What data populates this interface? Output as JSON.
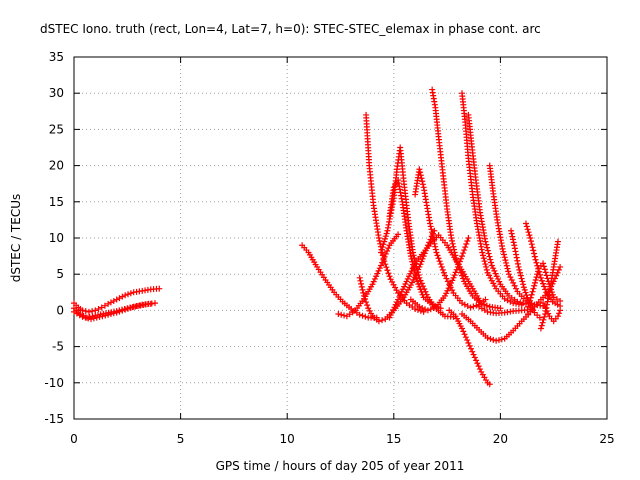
{
  "chart_data": {
    "type": "scatter",
    "title": "dSTEC Iono. truth (rect, Lon=4, Lat=7, h=0): STEC-STEC_elemax in phase cont. arc",
    "xlabel": "GPS time / hours of day 205 of year 2011",
    "ylabel": "dSTEC  / TECUs",
    "xlim": [
      0,
      25
    ],
    "ylim": [
      -15,
      35
    ],
    "xticks": [
      0,
      5,
      10,
      15,
      20,
      25
    ],
    "yticks": [
      -15,
      -10,
      -5,
      0,
      5,
      10,
      15,
      20,
      25,
      30,
      35
    ],
    "grid": true,
    "marker": "+",
    "color": "#ff0000",
    "arcs": [
      [
        [
          0.0,
          1.0
        ],
        [
          0.2,
          0.4
        ],
        [
          0.4,
          0.0
        ],
        [
          0.7,
          -0.2
        ],
        [
          1.0,
          0.0
        ],
        [
          1.3,
          0.4
        ],
        [
          1.6,
          0.9
        ],
        [
          2.0,
          1.5
        ],
        [
          2.4,
          2.1
        ],
        [
          2.8,
          2.5
        ],
        [
          3.2,
          2.7
        ],
        [
          3.6,
          2.9
        ],
        [
          4.0,
          3.0
        ]
      ],
      [
        [
          0.0,
          0.3
        ],
        [
          0.3,
          -0.5
        ],
        [
          0.6,
          -1.0
        ],
        [
          1.0,
          -0.7
        ],
        [
          1.5,
          -0.4
        ],
        [
          2.0,
          -0.1
        ],
        [
          2.5,
          0.3
        ],
        [
          3.0,
          0.6
        ],
        [
          3.5,
          0.9
        ],
        [
          3.8,
          1.0
        ]
      ],
      [
        [
          0.0,
          -0.2
        ],
        [
          0.4,
          -0.9
        ],
        [
          0.8,
          -1.2
        ],
        [
          1.2,
          -0.9
        ],
        [
          1.6,
          -0.6
        ],
        [
          2.0,
          -0.3
        ],
        [
          2.4,
          0.1
        ],
        [
          2.8,
          0.5
        ],
        [
          3.2,
          0.8
        ],
        [
          3.6,
          0.9
        ]
      ],
      [
        [
          10.7,
          9.0
        ],
        [
          11.0,
          8.0
        ],
        [
          11.4,
          6.0
        ],
        [
          11.8,
          4.2
        ],
        [
          12.2,
          2.5
        ],
        [
          12.6,
          1.2
        ],
        [
          13.0,
          0.2
        ],
        [
          13.4,
          -0.6
        ],
        [
          13.8,
          -1.0
        ],
        [
          14.2,
          -1.0
        ]
      ],
      [
        [
          13.7,
          27.0
        ],
        [
          13.85,
          20.0
        ],
        [
          14.05,
          14.5
        ],
        [
          14.3,
          10.0
        ],
        [
          14.55,
          6.8
        ],
        [
          14.85,
          4.3
        ],
        [
          15.2,
          2.4
        ],
        [
          15.6,
          1.0
        ],
        [
          16.0,
          0.2
        ],
        [
          16.4,
          -0.2
        ]
      ],
      [
        [
          13.4,
          4.5
        ],
        [
          13.6,
          2.0
        ],
        [
          13.8,
          0.3
        ],
        [
          14.0,
          -0.8
        ],
        [
          14.3,
          -1.5
        ],
        [
          14.6,
          -1.2
        ],
        [
          15.0,
          0.0
        ],
        [
          15.4,
          1.5
        ],
        [
          15.8,
          3.5
        ],
        [
          16.2,
          6.0
        ],
        [
          16.6,
          9.0
        ],
        [
          16.9,
          11.0
        ]
      ],
      [
        [
          12.4,
          -0.5
        ],
        [
          12.8,
          -0.8
        ],
        [
          13.2,
          0.0
        ],
        [
          13.6,
          1.6
        ],
        [
          14.0,
          3.6
        ],
        [
          14.4,
          6.2
        ],
        [
          14.8,
          9.0
        ],
        [
          15.2,
          10.5
        ]
      ],
      [
        [
          14.4,
          8.0
        ],
        [
          14.7,
          11.0
        ],
        [
          15.0,
          15.5
        ],
        [
          15.15,
          19.5
        ],
        [
          15.3,
          22.5
        ],
        [
          15.5,
          17.0
        ],
        [
          15.7,
          12.0
        ],
        [
          15.9,
          8.0
        ],
        [
          16.2,
          4.5
        ],
        [
          16.6,
          1.8
        ],
        [
          17.0,
          0.2
        ],
        [
          17.4,
          -0.8
        ],
        [
          17.8,
          -0.9
        ]
      ],
      [
        [
          14.8,
          13.0
        ],
        [
          15.0,
          17.0
        ],
        [
          15.2,
          18.0
        ],
        [
          15.4,
          15.0
        ],
        [
          15.6,
          11.0
        ],
        [
          15.8,
          7.5
        ],
        [
          16.1,
          4.0
        ],
        [
          16.4,
          1.8
        ],
        [
          16.8,
          0.8
        ],
        [
          17.2,
          0.3
        ]
      ],
      [
        [
          14.8,
          -1.0
        ],
        [
          15.2,
          1.5
        ],
        [
          15.6,
          4.0
        ],
        [
          16.0,
          6.5
        ],
        [
          16.4,
          8.0
        ],
        [
          16.8,
          9.5
        ],
        [
          17.1,
          10.4
        ],
        [
          17.5,
          9.0
        ],
        [
          17.9,
          7.0
        ],
        [
          18.3,
          5.0
        ],
        [
          18.7,
          3.0
        ],
        [
          19.1,
          1.0
        ],
        [
          19.5,
          0.5
        ]
      ],
      [
        [
          16.0,
          16.0
        ],
        [
          16.2,
          19.5
        ],
        [
          16.4,
          17.0
        ],
        [
          16.7,
          12.0
        ],
        [
          17.0,
          8.0
        ],
        [
          17.4,
          4.8
        ],
        [
          17.8,
          2.4
        ],
        [
          18.2,
          1.0
        ],
        [
          18.6,
          0.4
        ],
        [
          19.0,
          0.8
        ],
        [
          19.3,
          1.5
        ]
      ],
      [
        [
          16.8,
          30.5
        ],
        [
          16.95,
          28.0
        ],
        [
          17.1,
          24.0
        ],
        [
          17.3,
          19.0
        ],
        [
          17.5,
          14.0
        ],
        [
          17.7,
          10.0
        ],
        [
          17.95,
          6.8
        ],
        [
          18.3,
          4.0
        ],
        [
          18.7,
          2.0
        ],
        [
          19.1,
          0.9
        ],
        [
          19.5,
          0.5
        ],
        [
          20.0,
          0.3
        ]
      ],
      [
        [
          17.6,
          0.0
        ],
        [
          17.9,
          -0.8
        ],
        [
          18.2,
          -2.5
        ],
        [
          18.5,
          -4.5
        ],
        [
          18.8,
          -6.5
        ],
        [
          19.1,
          -8.5
        ],
        [
          19.4,
          -10.0
        ],
        [
          19.5,
          -10.2
        ]
      ],
      [
        [
          15.8,
          1.5
        ],
        [
          16.2,
          0.5
        ],
        [
          16.6,
          0.0
        ],
        [
          17.0,
          0.5
        ],
        [
          17.4,
          2.0
        ],
        [
          17.8,
          4.5
        ],
        [
          18.2,
          7.5
        ],
        [
          18.5,
          10.0
        ]
      ],
      [
        [
          18.2,
          -0.5
        ],
        [
          18.6,
          -1.5
        ],
        [
          19.0,
          -2.7
        ],
        [
          19.4,
          -3.8
        ],
        [
          19.8,
          -4.2
        ],
        [
          20.2,
          -3.9
        ],
        [
          20.6,
          -2.8
        ],
        [
          21.0,
          -1.5
        ],
        [
          21.3,
          -0.6
        ]
      ],
      [
        [
          18.2,
          30.0
        ],
        [
          18.35,
          26.0
        ],
        [
          18.5,
          21.0
        ],
        [
          18.7,
          16.0
        ],
        [
          18.9,
          12.0
        ],
        [
          19.15,
          8.0
        ],
        [
          19.4,
          5.2
        ],
        [
          19.8,
          3.0
        ],
        [
          20.2,
          1.6
        ],
        [
          20.6,
          1.0
        ],
        [
          21.0,
          0.8
        ]
      ],
      [
        [
          18.5,
          27.0
        ],
        [
          18.65,
          23.0
        ],
        [
          18.85,
          18.0
        ],
        [
          19.05,
          13.5
        ],
        [
          19.3,
          9.5
        ],
        [
          19.6,
          6.2
        ],
        [
          20.0,
          3.6
        ],
        [
          20.4,
          2.0
        ],
        [
          20.8,
          1.2
        ],
        [
          21.2,
          0.9
        ]
      ],
      [
        [
          19.5,
          20.0
        ],
        [
          19.65,
          16.5
        ],
        [
          19.85,
          12.5
        ],
        [
          20.1,
          8.5
        ],
        [
          20.4,
          5.0
        ],
        [
          20.8,
          2.6
        ],
        [
          21.2,
          1.3
        ],
        [
          21.6,
          0.8
        ],
        [
          22.0,
          0.6
        ]
      ],
      [
        [
          19.0,
          0.5
        ],
        [
          19.4,
          -0.2
        ],
        [
          19.8,
          -0.4
        ],
        [
          20.2,
          -0.3
        ],
        [
          20.6,
          -0.1
        ],
        [
          21.0,
          0.0
        ],
        [
          21.4,
          0.1
        ]
      ],
      [
        [
          20.5,
          11.0
        ],
        [
          20.65,
          9.0
        ],
        [
          20.85,
          6.0
        ],
        [
          21.1,
          3.2
        ],
        [
          21.35,
          1.0
        ],
        [
          21.6,
          -0.3
        ],
        [
          21.85,
          -1.0
        ]
      ],
      [
        [
          21.2,
          12.0
        ],
        [
          21.4,
          10.0
        ],
        [
          21.65,
          7.0
        ],
        [
          21.9,
          4.5
        ],
        [
          22.15,
          2.5
        ],
        [
          22.45,
          1.2
        ],
        [
          22.8,
          0.6
        ]
      ],
      [
        [
          21.3,
          0.5
        ],
        [
          21.55,
          3.0
        ],
        [
          21.8,
          5.8
        ],
        [
          22.0,
          6.5
        ],
        [
          22.25,
          4.0
        ],
        [
          22.5,
          1.8
        ],
        [
          22.8,
          1.3
        ]
      ],
      [
        [
          21.9,
          -2.5
        ],
        [
          22.1,
          -0.5
        ],
        [
          22.3,
          2.5
        ],
        [
          22.5,
          6.0
        ],
        [
          22.7,
          9.5
        ]
      ],
      [
        [
          21.3,
          -0.5
        ],
        [
          21.6,
          0.5
        ],
        [
          21.9,
          1.5
        ],
        [
          22.2,
          2.3
        ],
        [
          22.5,
          4.0
        ],
        [
          22.8,
          6.0
        ]
      ],
      [
        [
          22.0,
          1.0
        ],
        [
          22.3,
          -0.8
        ],
        [
          22.5,
          -1.5
        ],
        [
          22.7,
          -0.8
        ],
        [
          22.8,
          0.0
        ]
      ]
    ]
  }
}
